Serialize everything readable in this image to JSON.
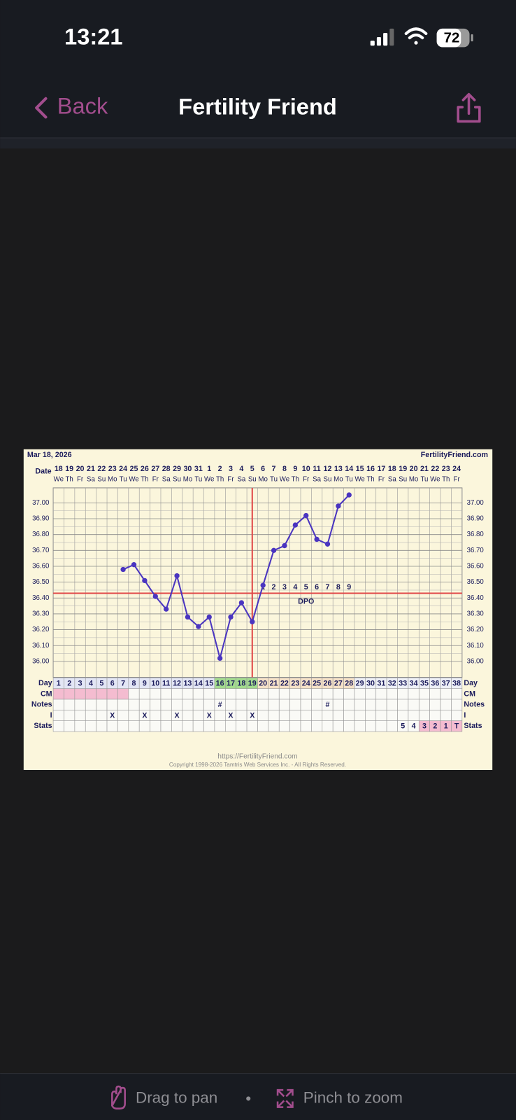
{
  "status_bar": {
    "time": "13:21",
    "battery": "72"
  },
  "nav": {
    "back": "Back",
    "title": "Fertility Friend"
  },
  "chart_data": {
    "type": "line",
    "date": "Mar 18, 2026",
    "brand": "FertilityFriend.com",
    "row_labels": {
      "date": "Date",
      "day": "Day",
      "cm": "CM",
      "notes": "Notes",
      "intercourse": "I",
      "stats": "Stats"
    },
    "categories": [
      1,
      2,
      3,
      4,
      5,
      6,
      7,
      8,
      9,
      10,
      11,
      12,
      13,
      14,
      15,
      16,
      17,
      18,
      19,
      20,
      21,
      22,
      23,
      24,
      25,
      26,
      27,
      28,
      29,
      30,
      31,
      32,
      33,
      34,
      35,
      36,
      37,
      38
    ],
    "dates": [
      18,
      19,
      20,
      21,
      22,
      23,
      24,
      25,
      26,
      27,
      28,
      29,
      30,
      31,
      1,
      2,
      3,
      4,
      5,
      6,
      7,
      8,
      9,
      10,
      11,
      12,
      13,
      14,
      15,
      16,
      17,
      18,
      19,
      20,
      21,
      22,
      23,
      24
    ],
    "weekdays": [
      "We",
      "Th",
      "Fr",
      "Sa",
      "Su",
      "Mo",
      "Tu",
      "We",
      "Th",
      "Fr",
      "Sa",
      "Su",
      "Mo",
      "Tu",
      "We",
      "Th",
      "Fr",
      "Sa",
      "Su",
      "Mo",
      "Tu",
      "We",
      "Th",
      "Fr",
      "Sa",
      "Su",
      "Mo",
      "Tu",
      "We",
      "Th",
      "Fr",
      "Sa",
      "Su",
      "Mo",
      "Tu",
      "We",
      "Th",
      "Fr"
    ],
    "values": [
      null,
      null,
      null,
      null,
      null,
      null,
      36.58,
      36.61,
      36.51,
      36.41,
      36.33,
      36.54,
      36.28,
      36.22,
      36.28,
      36.02,
      36.28,
      36.37,
      36.25,
      36.48,
      36.7,
      36.73,
      36.86,
      36.92,
      36.77,
      36.74,
      36.98,
      37.05,
      null,
      null,
      null,
      null,
      null,
      null,
      null,
      null,
      null,
      null
    ],
    "color": "#4a35c0",
    "ylim": [
      35.9,
      37.1
    ],
    "yticks": [
      {
        "value": 36.0,
        "label": "36.00"
      },
      {
        "value": 36.1,
        "label": "36.10"
      },
      {
        "value": 36.2,
        "label": "36.20"
      },
      {
        "value": 36.3,
        "label": "36.30"
      },
      {
        "value": 36.4,
        "label": "36.40"
      },
      {
        "value": 36.5,
        "label": "36.50"
      },
      {
        "value": 36.6,
        "label": "36.60"
      },
      {
        "value": 36.7,
        "label": "36.70"
      },
      {
        "value": 36.8,
        "label": "36.80"
      },
      {
        "value": 36.9,
        "label": "36.90"
      },
      {
        "value": 37.0,
        "label": "37.00"
      }
    ],
    "grid": true,
    "coverline": 36.43,
    "ovulation_day": 19,
    "marker_line_color": "#e04848",
    "dpo_label": "DPO",
    "dpo": [
      null,
      null,
      null,
      null,
      null,
      null,
      null,
      null,
      null,
      null,
      null,
      null,
      null,
      null,
      null,
      null,
      null,
      null,
      null,
      1,
      2,
      3,
      4,
      5,
      6,
      7,
      8,
      9,
      null,
      null,
      null,
      null,
      null,
      null,
      null,
      null,
      null,
      null
    ],
    "notes": [
      null,
      null,
      null,
      null,
      null,
      null,
      null,
      null,
      null,
      null,
      null,
      null,
      null,
      null,
      null,
      "#",
      null,
      null,
      null,
      null,
      null,
      null,
      null,
      null,
      null,
      "#",
      null,
      null,
      null,
      null,
      null,
      null,
      null,
      null,
      null,
      null,
      null,
      null
    ],
    "intercourse": [
      null,
      null,
      null,
      null,
      null,
      "X",
      null,
      null,
      "X",
      null,
      null,
      "X",
      null,
      null,
      "X",
      null,
      "X",
      null,
      "X",
      null,
      null,
      null,
      null,
      null,
      null,
      null,
      null,
      null,
      null,
      null,
      null,
      null,
      null,
      null,
      null,
      null,
      null,
      null
    ],
    "stats": [
      null,
      null,
      null,
      null,
      null,
      null,
      null,
      null,
      null,
      null,
      null,
      null,
      null,
      null,
      null,
      null,
      null,
      null,
      null,
      null,
      null,
      null,
      null,
      null,
      null,
      null,
      null,
      null,
      null,
      null,
      null,
      null,
      5,
      4,
      3,
      2,
      1,
      "T"
    ],
    "day_colors": [
      "#e3e6f5",
      "#e3e6f5",
      "#e3e6f5",
      "#e3e6f5",
      "#e3e6f5",
      "#e3e6f5",
      "#e3e6f5",
      "#e3e6f5",
      "#e3e6f5",
      "#e3e6f5",
      "#e3e6f5",
      "#e3e6f5",
      "#e3e6f5",
      "#e3e6f5",
      "#e3e6f5",
      "#a3dc8e",
      "#a3dc8e",
      "#a3dc8e",
      "#a3dc8e",
      "#f6e2c8",
      "#f6e2c8",
      "#f6e2c8",
      "#f6e2c8",
      "#f6e2c8",
      "#f6e2c8",
      "#f6e2c8",
      "#f6e2c8",
      "#f6e2c8",
      "#eef0f7",
      "#eef0f7",
      "#eef0f7",
      "#eef0f7",
      "#eef0f7",
      "#eef0f7",
      "#eef0f7",
      "#eef0f7",
      "#eef0f7",
      "#eef0f7"
    ],
    "cm_colors": [
      "#f4bcd0",
      "#f4bcd0",
      "#f4bcd0",
      "#f4bcd0",
      "#f4bcd0",
      "#f4bcd0",
      "#f4bcd0",
      null,
      null,
      null,
      null,
      null,
      null,
      null,
      null,
      null,
      null,
      null,
      null,
      null,
      null,
      null,
      null,
      null,
      null,
      null,
      null,
      null,
      null,
      null,
      null,
      null,
      null,
      null,
      null,
      null,
      null,
      null
    ],
    "stats_colors": [
      null,
      null,
      null,
      null,
      null,
      null,
      null,
      null,
      null,
      null,
      null,
      null,
      null,
      null,
      null,
      null,
      null,
      null,
      null,
      null,
      null,
      null,
      null,
      null,
      null,
      null,
      null,
      null,
      null,
      null,
      null,
      null,
      null,
      null,
      "#f4bcd0",
      "#f4bcd0",
      "#f4bcd0",
      "#f4bcd0"
    ],
    "url": "https://FertilityFriend.com",
    "copyright": "Copyright 1998-2026 Tamtris Web Services Inc. - All Rights Reserved."
  },
  "footer": {
    "pan": "Drag to pan",
    "zoom": "Pinch to zoom"
  }
}
